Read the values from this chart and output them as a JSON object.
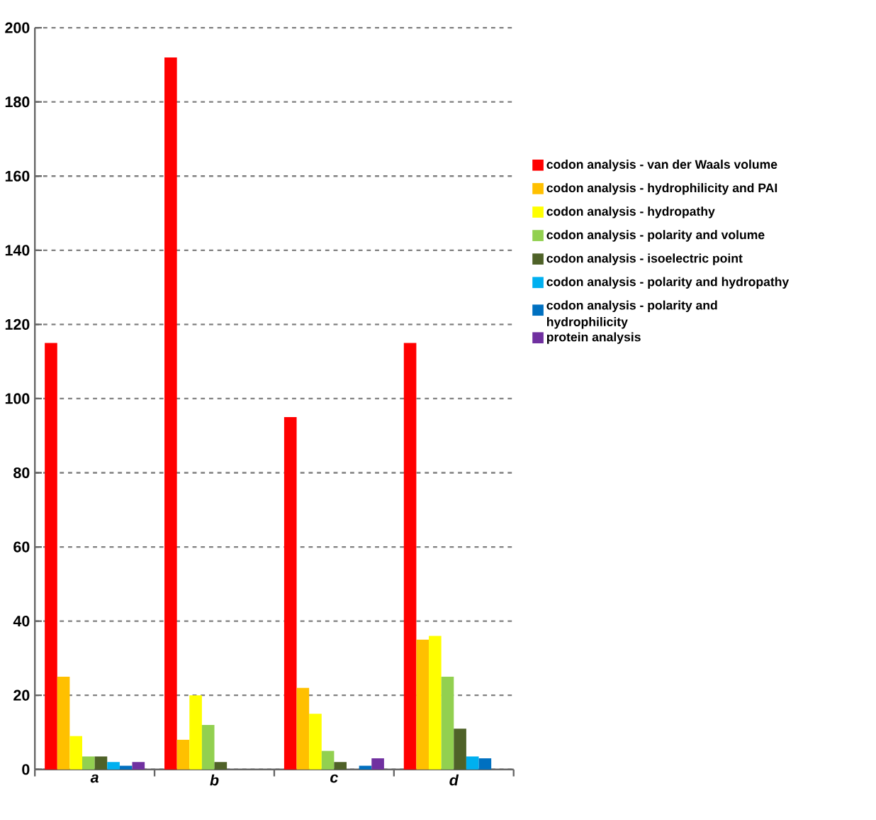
{
  "chart_data": {
    "type": "bar",
    "categories": [
      "a",
      "b",
      "c",
      "d"
    ],
    "series": [
      {
        "name": "codon analysis - van der Waals volume",
        "color": "#ff0000",
        "values": [
          115,
          192,
          95,
          115
        ]
      },
      {
        "name": "codon analysis - hydrophilicity and PAI",
        "color": "#ffc000",
        "values": [
          25,
          8,
          22,
          35
        ]
      },
      {
        "name": "codon analysis - hydropathy",
        "color": "#ffff00",
        "values": [
          9,
          20,
          15,
          36
        ]
      },
      {
        "name": "codon analysis - polarity and volume",
        "color": "#92d050",
        "values": [
          3.5,
          12,
          5,
          25
        ]
      },
      {
        "name": "codon analysis - isoelectric point",
        "color": "#4f6228",
        "values": [
          3.5,
          2,
          2,
          11
        ]
      },
      {
        "name": "codon analysis - polarity and hydropathy",
        "color": "#00b0f0",
        "values": [
          2,
          0,
          0,
          3.5
        ]
      },
      {
        "name": "codon analysis - polarity and hydrophilicity",
        "color": "#0070c0",
        "values": [
          1,
          0,
          1,
          3
        ]
      },
      {
        "name": "protein analysis",
        "color": "#7030a0",
        "values": [
          2,
          0,
          3,
          0
        ]
      }
    ],
    "ylim": [
      0,
      200
    ],
    "yticks": [
      0,
      20,
      40,
      60,
      80,
      100,
      120,
      140,
      160,
      180,
      200
    ],
    "grid": "y",
    "legend": "right"
  }
}
